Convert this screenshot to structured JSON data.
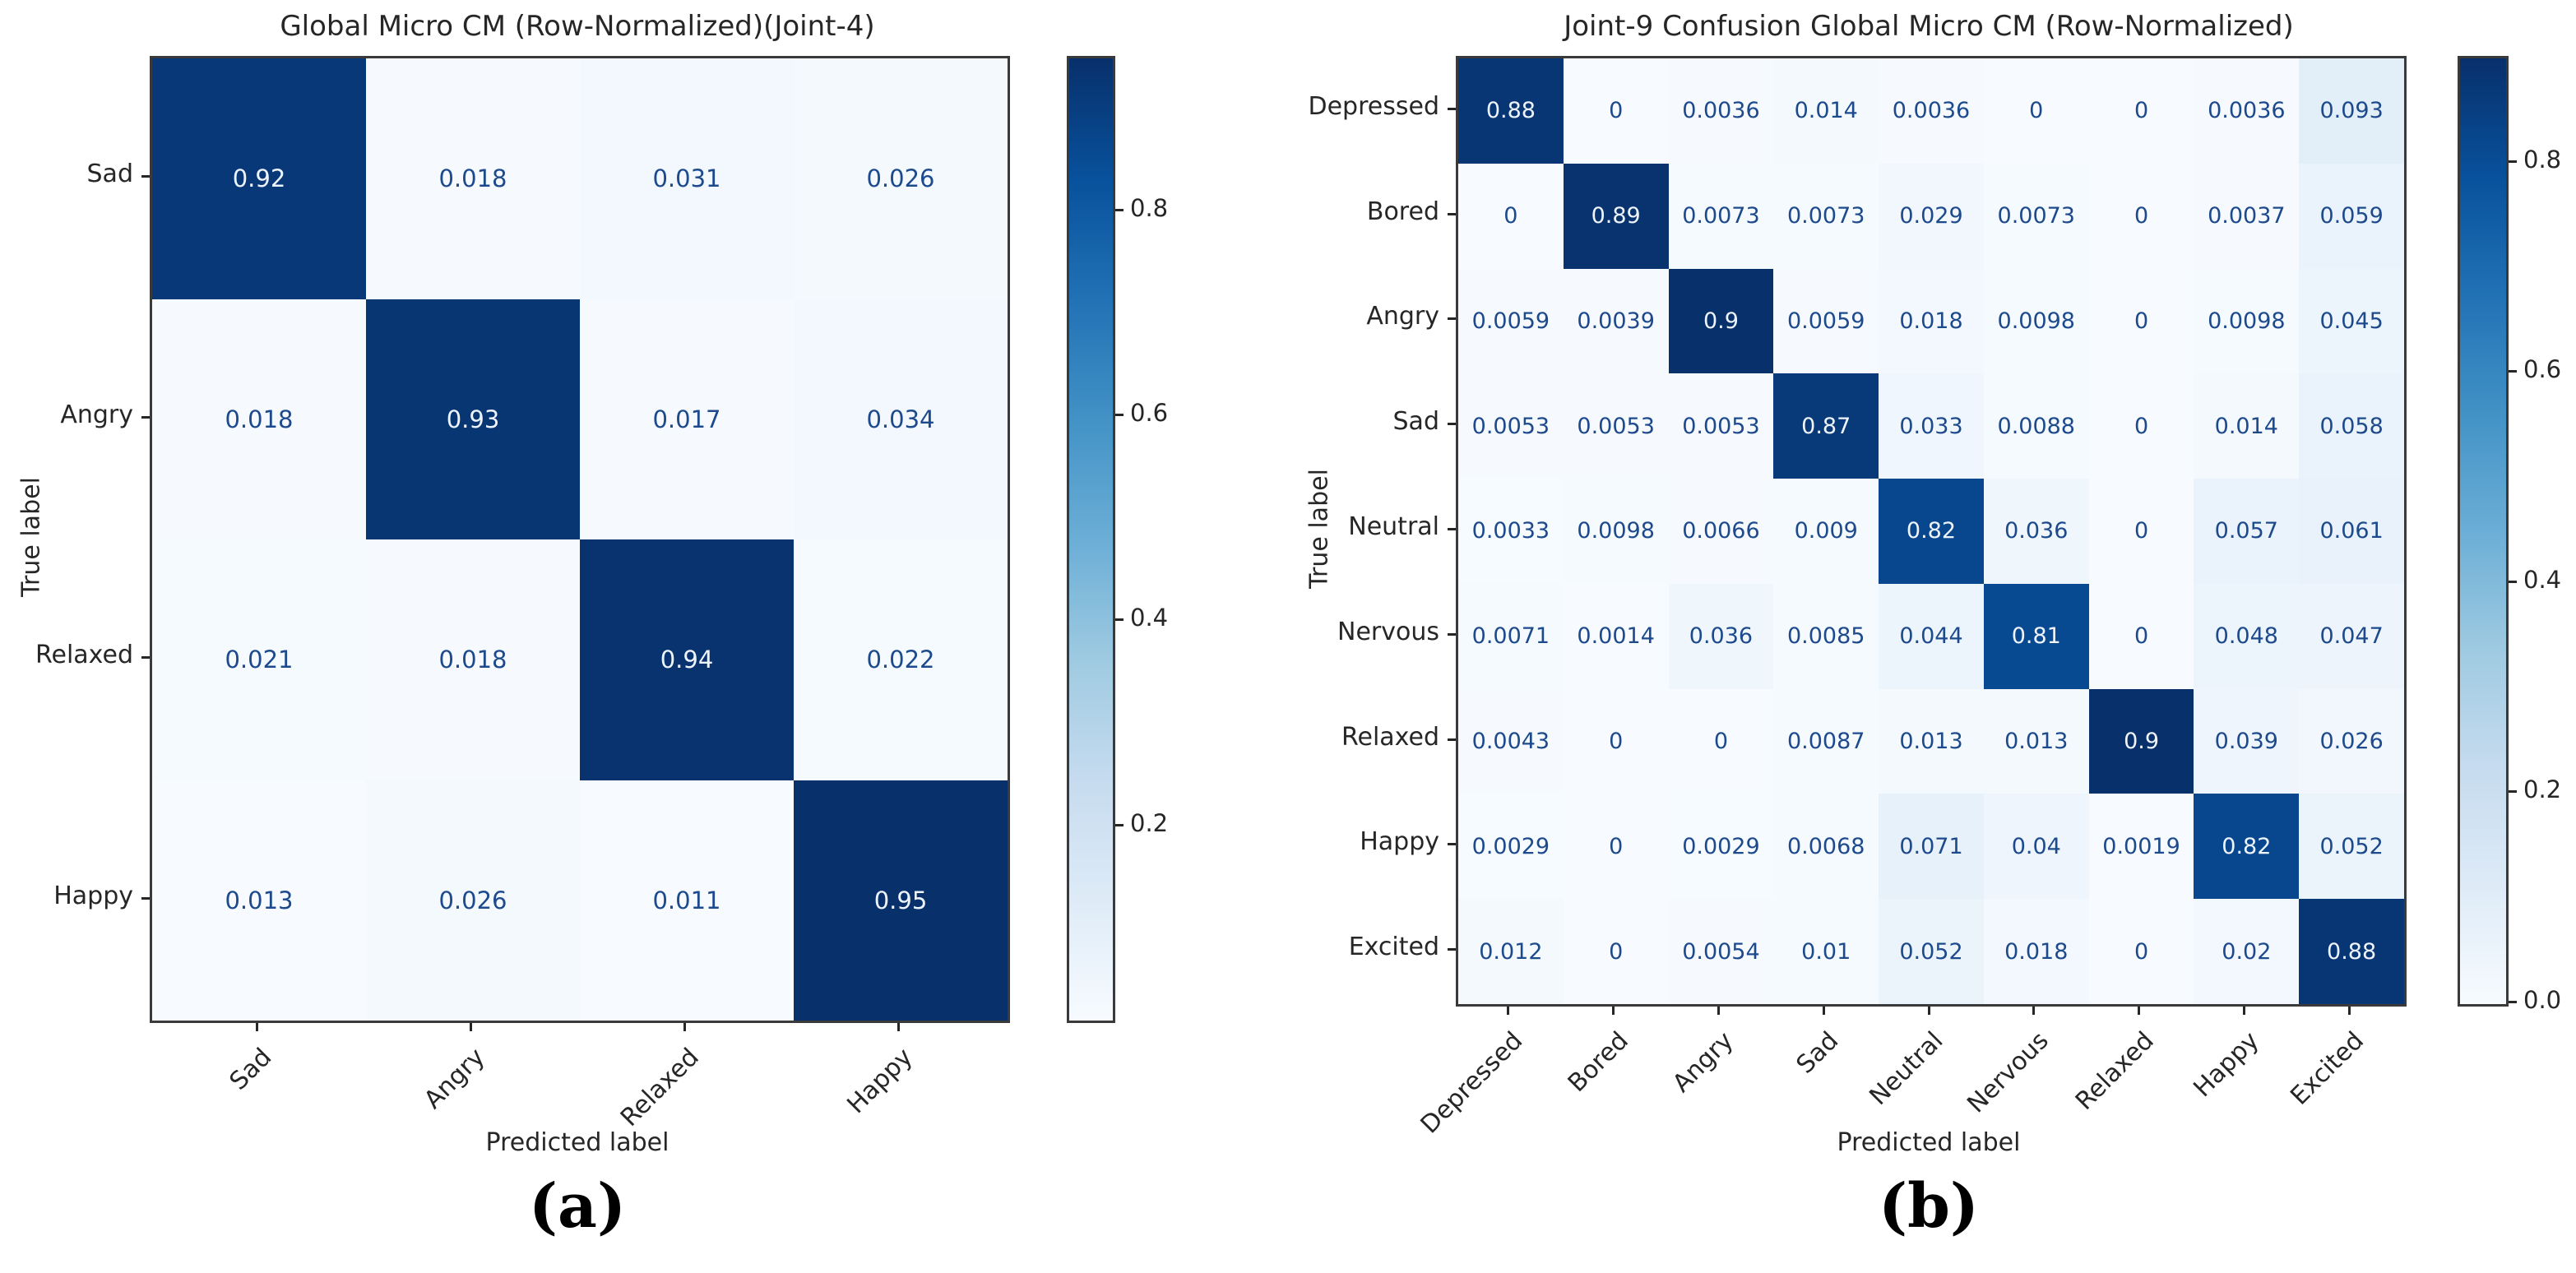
{
  "colors": {
    "cmap_name": "Blues",
    "cmap_stops": [
      "#f7fbff",
      "#deebf7",
      "#c6dbef",
      "#9ecae1",
      "#6baed6",
      "#4292c6",
      "#2171b5",
      "#08519c",
      "#08306b"
    ],
    "cell_text_on_light": "#1d4a8c",
    "cell_text_on_dark": "#eef4fc",
    "axis_text": "#262626",
    "spine": "#3a3a3a",
    "background": "#ffffff"
  },
  "chart_data": [
    {
      "type": "heatmap",
      "title": "Global Micro CM (Row-Normalized)(Joint-4)",
      "xlabel": "Predicted label",
      "ylabel": "True label",
      "caption": "(a)",
      "categories": [
        "Sad",
        "Angry",
        "Relaxed",
        "Happy"
      ],
      "matrix": [
        [
          "0.92",
          "0.018",
          "0.031",
          "0.026"
        ],
        [
          "0.018",
          "0.93",
          "0.017",
          "0.034"
        ],
        [
          "0.021",
          "0.018",
          "0.94",
          "0.022"
        ],
        [
          "0.013",
          "0.026",
          "0.011",
          "0.95"
        ]
      ],
      "vmin": 0.011,
      "vmax": 0.95,
      "colorbar_ticks": [
        "0.2",
        "0.4",
        "0.6",
        "0.8"
      ],
      "legend_position": "right",
      "grid": false
    },
    {
      "type": "heatmap",
      "title": "Joint-9 Confusion Global Micro CM (Row-Normalized)",
      "xlabel": "Predicted label",
      "ylabel": "True label",
      "caption": "(b)",
      "categories": [
        "Depressed",
        "Bored",
        "Angry",
        "Sad",
        "Neutral",
        "Nervous",
        "Relaxed",
        "Happy",
        "Excited"
      ],
      "matrix": [
        [
          "0.88",
          "0",
          "0.0036",
          "0.014",
          "0.0036",
          "0",
          "0",
          "0.0036",
          "0.093"
        ],
        [
          "0",
          "0.89",
          "0.0073",
          "0.0073",
          "0.029",
          "0.0073",
          "0",
          "0.0037",
          "0.059"
        ],
        [
          "0.0059",
          "0.0039",
          "0.9",
          "0.0059",
          "0.018",
          "0.0098",
          "0",
          "0.0098",
          "0.045"
        ],
        [
          "0.0053",
          "0.0053",
          "0.0053",
          "0.87",
          "0.033",
          "0.0088",
          "0",
          "0.014",
          "0.058"
        ],
        [
          "0.0033",
          "0.0098",
          "0.0066",
          "0.009",
          "0.82",
          "0.036",
          "0",
          "0.057",
          "0.061"
        ],
        [
          "0.0071",
          "0.0014",
          "0.036",
          "0.0085",
          "0.044",
          "0.81",
          "0",
          "0.048",
          "0.047"
        ],
        [
          "0.0043",
          "0",
          "0",
          "0.0087",
          "0.013",
          "0.013",
          "0.9",
          "0.039",
          "0.026"
        ],
        [
          "0.0029",
          "0",
          "0.0029",
          "0.0068",
          "0.071",
          "0.04",
          "0.0019",
          "0.82",
          "0.052"
        ],
        [
          "0.012",
          "0",
          "0.0054",
          "0.01",
          "0.052",
          "0.018",
          "0",
          "0.02",
          "0.88"
        ]
      ],
      "vmin": 0.0,
      "vmax": 0.9,
      "colorbar_ticks": [
        "0.0",
        "0.2",
        "0.4",
        "0.6",
        "0.8"
      ],
      "legend_position": "right",
      "grid": false
    }
  ]
}
